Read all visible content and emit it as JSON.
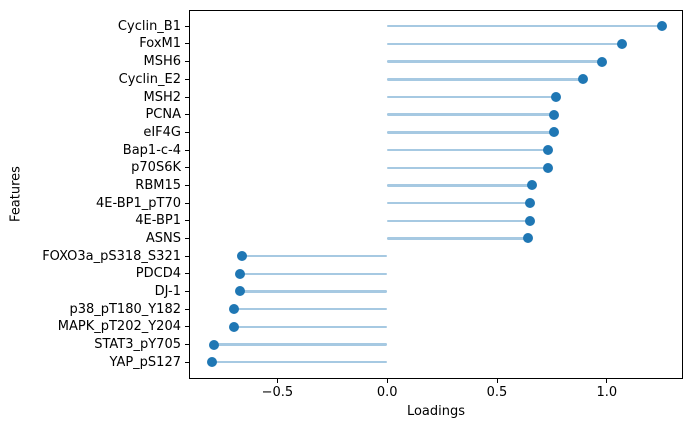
{
  "chart_data": {
    "type": "scatter",
    "style": "lollipop-stem",
    "title": "",
    "xlabel": "Loadings",
    "ylabel": "Features",
    "categories": [
      "Cyclin_B1",
      "FoxM1",
      "MSH6",
      "Cyclin_E2",
      "MSH2",
      "PCNA",
      "eIF4G",
      "Bap1-c-4",
      "p70S6K",
      "RBM15",
      "4E-BP1_pT70",
      "4E-BP1",
      "ASNS",
      "FOXO3a_pS318_S321",
      "PDCD4",
      "DJ-1",
      "p38_pT180_Y182",
      "MAPK_pT202_Y204",
      "STAT3_pY705",
      "YAP_pS127"
    ],
    "values": [
      1.25,
      1.07,
      0.98,
      0.89,
      0.77,
      0.76,
      0.76,
      0.73,
      0.73,
      0.66,
      0.65,
      0.65,
      0.64,
      -0.66,
      -0.67,
      -0.67,
      -0.7,
      -0.7,
      -0.79,
      -0.8
    ],
    "stem_baseline": 0.0,
    "xlim": [
      -0.905,
      1.347
    ],
    "xticks": [
      -0.5,
      0.0,
      0.5,
      1.0
    ],
    "xtick_labels": [
      "−0.5",
      "0.0",
      "0.5",
      "1.0"
    ],
    "grid": false,
    "legend": null,
    "colors": {
      "marker": "#1f77b4",
      "stem": "#a6c9e2",
      "axis": "#000000",
      "background": "#ffffff"
    }
  }
}
